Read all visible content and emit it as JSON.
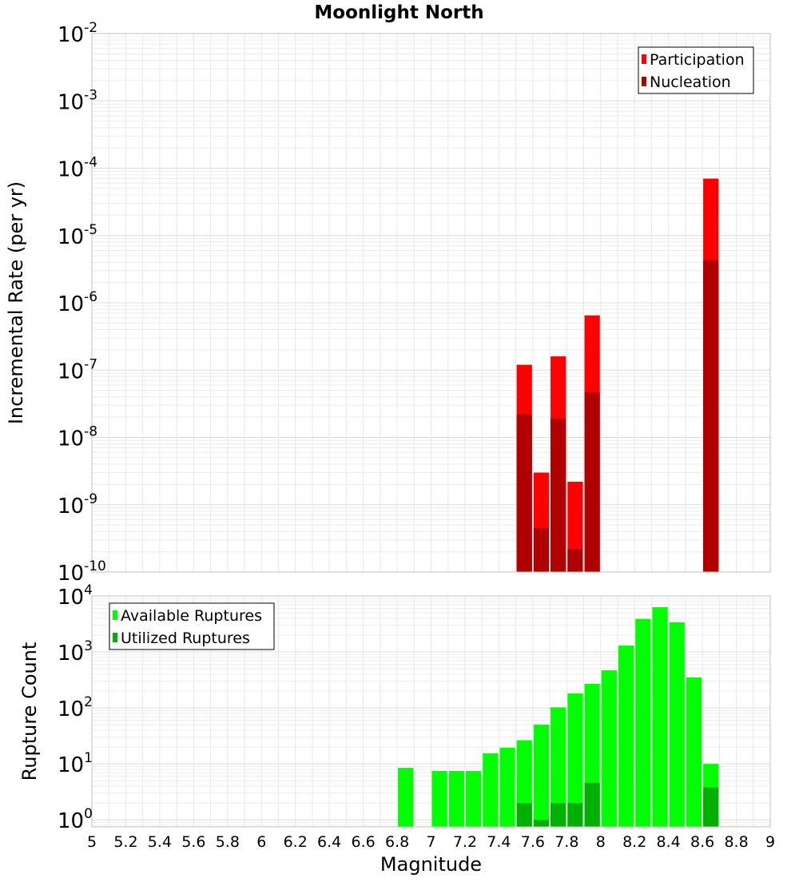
{
  "chart_data": [
    {
      "type": "bar",
      "title": "Moonlight North",
      "xlabel": "",
      "ylabel": "Incremental Rate (per yr)",
      "yscale": "log",
      "ylim": [
        1e-10,
        0.01
      ],
      "xlim": [
        5,
        9
      ],
      "grid": true,
      "legend_position": "top-right",
      "bin_width": 0.1,
      "yticks": [
        {
          "base": "10",
          "exp": "-10"
        },
        {
          "base": "10",
          "exp": "-9"
        },
        {
          "base": "10",
          "exp": "-8"
        },
        {
          "base": "10",
          "exp": "-7"
        },
        {
          "base": "10",
          "exp": "-6"
        },
        {
          "base": "10",
          "exp": "-5"
        },
        {
          "base": "10",
          "exp": "-4"
        },
        {
          "base": "10",
          "exp": "-3"
        },
        {
          "base": "10",
          "exp": "-2"
        }
      ],
      "series": [
        {
          "name": "Participation",
          "color": "#ff0000",
          "points": [
            {
              "x": 7.55,
              "y": 1.2e-07
            },
            {
              "x": 7.65,
              "y": 3e-09
            },
            {
              "x": 7.75,
              "y": 1.6e-07
            },
            {
              "x": 7.85,
              "y": 2.2e-09
            },
            {
              "x": 7.95,
              "y": 6.5e-07
            },
            {
              "x": 8.65,
              "y": 7e-05
            }
          ]
        },
        {
          "name": "Nucleation",
          "color": "#b00000",
          "points": [
            {
              "x": 7.55,
              "y": 2.2e-08
            },
            {
              "x": 7.65,
              "y": 4.5e-10
            },
            {
              "x": 7.75,
              "y": 1.9e-08
            },
            {
              "x": 7.85,
              "y": 2.2e-10
            },
            {
              "x": 7.95,
              "y": 4.7e-08
            },
            {
              "x": 8.65,
              "y": 4.3e-06
            }
          ]
        }
      ]
    },
    {
      "type": "bar",
      "title": "",
      "xlabel": "Magnitude",
      "ylabel": "Rupture Count",
      "yscale": "log",
      "ylim": [
        0.75,
        10000
      ],
      "xlim": [
        5,
        9
      ],
      "grid": true,
      "legend_position": "top-left",
      "bin_width": 0.1,
      "xticks": [
        "5",
        "5.2",
        "5.4",
        "5.6",
        "5.8",
        "6",
        "6.2",
        "6.4",
        "6.6",
        "6.8",
        "7",
        "7.2",
        "7.4",
        "7.6",
        "7.8",
        "8",
        "8.2",
        "8.4",
        "8.6",
        "8.8",
        "9"
      ],
      "yticks": [
        {
          "base": "10",
          "exp": "0"
        },
        {
          "base": "10",
          "exp": "1"
        },
        {
          "base": "10",
          "exp": "2"
        },
        {
          "base": "10",
          "exp": "3"
        },
        {
          "base": "10",
          "exp": "4"
        }
      ],
      "series": [
        {
          "name": "Available Ruptures",
          "color": "#00ff00",
          "points": [
            {
              "x": 6.85,
              "y": 8.5
            },
            {
              "x": 7.05,
              "y": 7.5
            },
            {
              "x": 7.15,
              "y": 7.5
            },
            {
              "x": 7.25,
              "y": 7.5
            },
            {
              "x": 7.35,
              "y": 15.5
            },
            {
              "x": 7.45,
              "y": 19.5
            },
            {
              "x": 7.55,
              "y": 26.5
            },
            {
              "x": 7.65,
              "y": 50.5
            },
            {
              "x": 7.75,
              "y": 102.5
            },
            {
              "x": 7.85,
              "y": 182
            },
            {
              "x": 7.95,
              "y": 270
            },
            {
              "x": 8.05,
              "y": 470
            },
            {
              "x": 8.15,
              "y": 1300
            },
            {
              "x": 8.25,
              "y": 3900
            },
            {
              "x": 8.35,
              "y": 6300
            },
            {
              "x": 8.45,
              "y": 3400
            },
            {
              "x": 8.55,
              "y": 350
            },
            {
              "x": 8.65,
              "y": 10
            }
          ]
        },
        {
          "name": "Utilized Ruptures",
          "color": "#00b000",
          "points": [
            {
              "x": 7.55,
              "y": 2
            },
            {
              "x": 7.65,
              "y": 1
            },
            {
              "x": 7.75,
              "y": 2
            },
            {
              "x": 7.85,
              "y": 2
            },
            {
              "x": 7.95,
              "y": 4.6
            },
            {
              "x": 8.65,
              "y": 3.8
            }
          ]
        }
      ]
    }
  ]
}
